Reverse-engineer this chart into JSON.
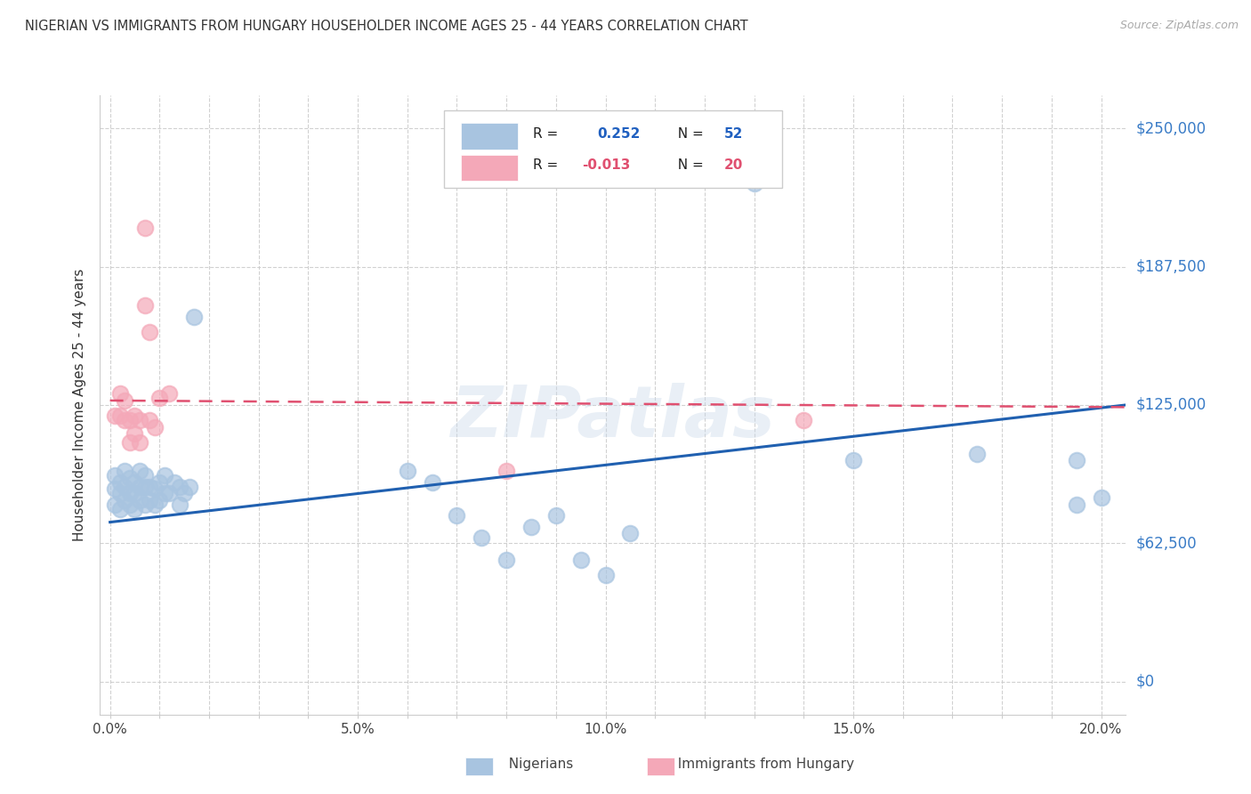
{
  "title": "NIGERIAN VS IMMIGRANTS FROM HUNGARY HOUSEHOLDER INCOME AGES 25 - 44 YEARS CORRELATION CHART",
  "source": "Source: ZipAtlas.com",
  "ylabel": "Householder Income Ages 25 - 44 years",
  "xlim": [
    -0.002,
    0.205
  ],
  "ylim": [
    -15000,
    265000
  ],
  "ytick_labels": [
    "$0",
    "$62,500",
    "$125,000",
    "$187,500",
    "$250,000"
  ],
  "ytick_values": [
    0,
    62500,
    125000,
    187500,
    250000
  ],
  "xtick_labels": [
    "0.0%",
    "",
    "",
    "",
    "",
    "5.0%",
    "",
    "",
    "",
    "",
    "10.0%",
    "",
    "",
    "",
    "",
    "15.0%",
    "",
    "",
    "",
    "",
    "20.0%"
  ],
  "xtick_values": [
    0.0,
    0.01,
    0.02,
    0.03,
    0.04,
    0.05,
    0.06,
    0.07,
    0.08,
    0.09,
    0.1,
    0.11,
    0.12,
    0.13,
    0.14,
    0.15,
    0.16,
    0.17,
    0.18,
    0.19,
    0.2
  ],
  "legend_r_nigerian": "R =  0.252",
  "legend_n_nigerian": "N = 52",
  "legend_r_hungary": "R = -0.013",
  "legend_n_hungary": "N = 20",
  "nigerian_color": "#a8c4e0",
  "hungary_color": "#f4a8b8",
  "nigerian_line_color": "#2060b0",
  "hungary_line_color": "#e05070",
  "background_color": "#ffffff",
  "watermark": "ZIPatlas",
  "nigerian_scatter_x": [
    0.001,
    0.001,
    0.001,
    0.002,
    0.002,
    0.002,
    0.003,
    0.003,
    0.003,
    0.004,
    0.004,
    0.004,
    0.005,
    0.005,
    0.005,
    0.006,
    0.006,
    0.006,
    0.007,
    0.007,
    0.007,
    0.008,
    0.008,
    0.009,
    0.009,
    0.01,
    0.01,
    0.011,
    0.011,
    0.012,
    0.013,
    0.014,
    0.014,
    0.015,
    0.016,
    0.017,
    0.06,
    0.065,
    0.07,
    0.075,
    0.08,
    0.085,
    0.09,
    0.095,
    0.1,
    0.105,
    0.13,
    0.15,
    0.175,
    0.195,
    0.195,
    0.2
  ],
  "nigerian_scatter_y": [
    80000,
    87000,
    93000,
    78000,
    85000,
    90000,
    82000,
    88000,
    95000,
    80000,
    85000,
    92000,
    78000,
    85000,
    90000,
    82000,
    88000,
    95000,
    80000,
    88000,
    93000,
    82000,
    88000,
    80000,
    87000,
    82000,
    90000,
    85000,
    93000,
    85000,
    90000,
    80000,
    88000,
    85000,
    88000,
    165000,
    95000,
    90000,
    75000,
    65000,
    55000,
    70000,
    75000,
    55000,
    48000,
    67000,
    225000,
    100000,
    103000,
    100000,
    80000,
    83000
  ],
  "hungary_scatter_x": [
    0.001,
    0.002,
    0.002,
    0.003,
    0.003,
    0.004,
    0.004,
    0.005,
    0.005,
    0.006,
    0.006,
    0.007,
    0.007,
    0.008,
    0.008,
    0.009,
    0.01,
    0.012,
    0.08,
    0.14
  ],
  "hungary_scatter_y": [
    120000,
    120000,
    130000,
    118000,
    127000,
    108000,
    118000,
    112000,
    120000,
    108000,
    118000,
    170000,
    205000,
    158000,
    118000,
    115000,
    128000,
    130000,
    95000,
    118000
  ],
  "nigerian_line_x": [
    0.0,
    0.205
  ],
  "nigerian_line_y": [
    72000,
    125000
  ],
  "hungary_line_x": [
    0.0,
    0.205
  ],
  "hungary_line_y": [
    127000,
    124000
  ]
}
